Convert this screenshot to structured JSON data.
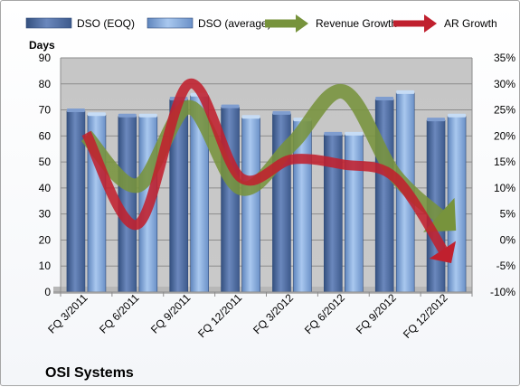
{
  "chart_data": {
    "type": "bar",
    "title": "OSI Systems",
    "ylabel": "Days",
    "categories": [
      "FQ 3/2011",
      "FQ 6/2011",
      "FQ 9/2011",
      "FQ 12/2011",
      "FQ 3/2012",
      "FQ 6/2012",
      "FQ 9/2012",
      "FQ 12/2012"
    ],
    "ylim": [
      0,
      90
    ],
    "y_ticks": [
      "0",
      "10",
      "20",
      "30",
      "40",
      "50",
      "60",
      "70",
      "80",
      "90"
    ],
    "y2lim": [
      -0.1,
      0.35
    ],
    "y2_ticks": [
      "-10%",
      "-5%",
      "0%",
      "5%",
      "10%",
      "15%",
      "20%",
      "25%",
      "30%",
      "35%"
    ],
    "series": [
      {
        "name": "DSO (EOQ)",
        "kind": "bar",
        "axis": "left",
        "color": "#4f6fa6",
        "values": [
          69.5,
          67.5,
          74,
          71,
          68.5,
          60.5,
          74,
          66
        ]
      },
      {
        "name": "DSO (average)",
        "kind": "bar",
        "axis": "left",
        "color": "#8eb4e3",
        "values": [
          68,
          67.5,
          75.5,
          67,
          66,
          60.5,
          76.5,
          67.5
        ]
      },
      {
        "name": "Revenue Growth",
        "kind": "arrow",
        "axis": "right",
        "color": "#77933c",
        "values": [
          0.2,
          0.105,
          0.255,
          0.1,
          0.185,
          0.285,
          0.125,
          0.035
        ]
      },
      {
        "name": "AR Growth",
        "kind": "arrow",
        "axis": "right",
        "color": "#c0202e",
        "values": [
          0.205,
          0.03,
          0.3,
          0.12,
          0.155,
          0.145,
          0.12,
          -0.03
        ]
      }
    ],
    "grid": true,
    "legend": "top"
  }
}
